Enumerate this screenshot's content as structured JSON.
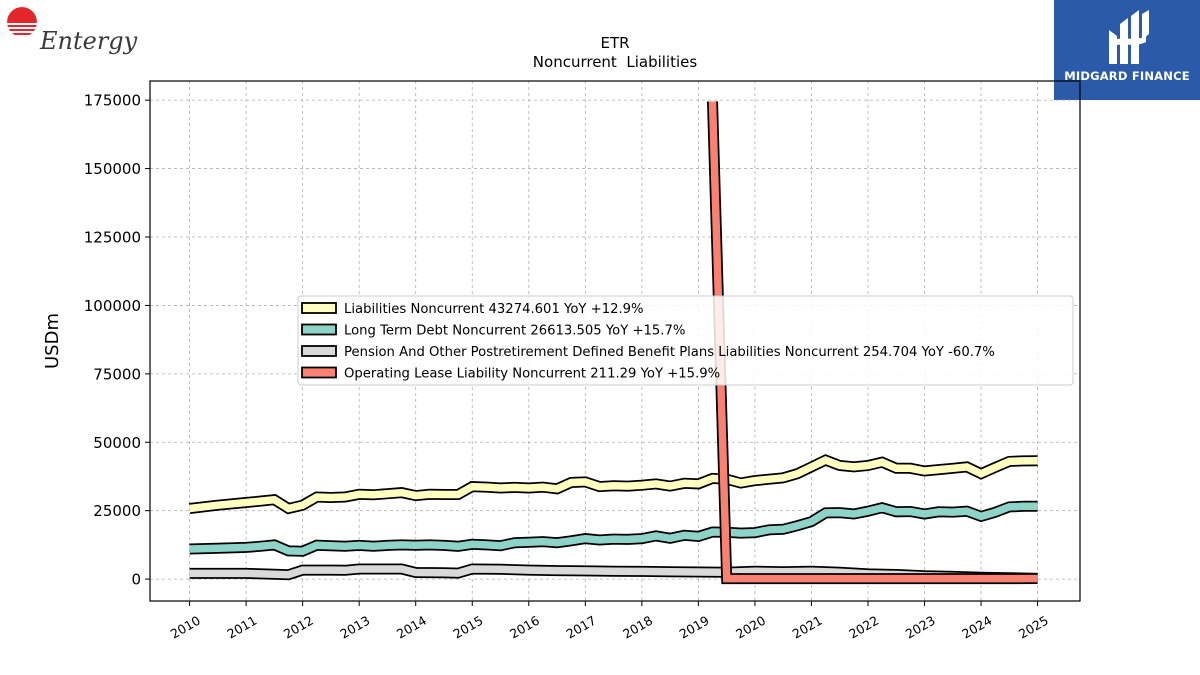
{
  "header": {
    "left_logo_text": "Entergy",
    "right_logo_text": "MIDGARD FINANCE"
  },
  "colors": {
    "liabilities_noncurrent": "#ffffc0",
    "long_term_debt": "#8dd3c7",
    "pension": "#d9d9d9",
    "operating_lease": "#fa8072",
    "entergy_red": "#e3262b",
    "midgard_blue": "#2b5aa8"
  },
  "chart_data": {
    "type": "line",
    "title": "ETR",
    "subtitle": "Noncurrent  Liabilities",
    "ylabel": "USDm",
    "xlabel": "",
    "ylim": [
      -8000,
      182000
    ],
    "xlim": [
      2009.3,
      2025.75
    ],
    "yticks": [
      0,
      25000,
      50000,
      75000,
      100000,
      125000,
      150000,
      175000
    ],
    "ytick_labels": [
      "0",
      "25000",
      "50000",
      "75000",
      "100000",
      "125000",
      "150000",
      "175000"
    ],
    "xticks": [
      2010,
      2011,
      2012,
      2013,
      2014,
      2015,
      2016,
      2017,
      2018,
      2019,
      2020,
      2021,
      2022,
      2023,
      2024,
      2025
    ],
    "xtick_labels": [
      "2010",
      "2011",
      "2012",
      "2013",
      "2014",
      "2015",
      "2016",
      "2017",
      "2018",
      "2019",
      "2020",
      "2021",
      "2022",
      "2023",
      "2024",
      "2025"
    ],
    "grid": true,
    "legend_position": "center-right",
    "series": [
      {
        "name": "Liabilities Noncurrent",
        "legend": "Liabilities Noncurrent  43274.601 YoY +12.9%",
        "color": "#ffffc0",
        "x": [
          2010.0,
          2010.5,
          2011.0,
          2011.25,
          2011.5,
          2011.75,
          2012.0,
          2012.25,
          2012.5,
          2012.75,
          2013.0,
          2013.25,
          2013.5,
          2013.75,
          2014.0,
          2014.25,
          2014.5,
          2014.75,
          2015.0,
          2015.25,
          2015.5,
          2015.75,
          2016.0,
          2016.25,
          2016.5,
          2016.75,
          2017.0,
          2017.25,
          2017.5,
          2017.75,
          2018.0,
          2018.25,
          2018.5,
          2018.75,
          2019.0,
          2019.25,
          2019.5,
          2019.75,
          2020.0,
          2020.25,
          2020.5,
          2020.75,
          2021.0,
          2021.25,
          2021.5,
          2021.75,
          2022.0,
          2022.25,
          2022.5,
          2022.75,
          2023.0,
          2023.25,
          2023.5,
          2023.75,
          2024.0,
          2024.25,
          2024.5,
          2024.75,
          2025.0
        ],
        "values": [
          25800,
          27000,
          28000,
          28500,
          29000,
          25800,
          27000,
          30000,
          29800,
          30000,
          31000,
          30800,
          31200,
          31600,
          30500,
          31000,
          30900,
          30900,
          33800,
          33600,
          33300,
          33500,
          33300,
          33600,
          33000,
          35300,
          35500,
          33800,
          34100,
          34000,
          34300,
          34800,
          34000,
          35000,
          34800,
          36800,
          36500,
          35100,
          36000,
          36500,
          37000,
          38500,
          41000,
          43500,
          41500,
          41000,
          41500,
          42700,
          40500,
          40500,
          39500,
          40000,
          40500,
          41000,
          38500,
          40800,
          43000,
          43200,
          43275
        ]
      },
      {
        "name": "Long Term Debt Noncurrent",
        "legend": "Long Term Debt Noncurrent  26613.505 YoY +15.7%",
        "color": "#8dd3c7",
        "x": [
          2010.0,
          2010.5,
          2011.0,
          2011.25,
          2011.5,
          2011.75,
          2012.0,
          2012.25,
          2012.5,
          2012.75,
          2013.0,
          2013.25,
          2013.5,
          2013.75,
          2014.0,
          2014.25,
          2014.5,
          2014.75,
          2015.0,
          2015.25,
          2015.5,
          2015.75,
          2016.0,
          2016.25,
          2016.5,
          2016.75,
          2017.0,
          2017.25,
          2017.5,
          2017.75,
          2018.0,
          2018.25,
          2018.5,
          2018.75,
          2019.0,
          2019.25,
          2019.5,
          2019.75,
          2020.0,
          2020.25,
          2020.5,
          2020.75,
          2021.0,
          2021.25,
          2021.5,
          2021.75,
          2022.0,
          2022.25,
          2022.5,
          2022.75,
          2023.0,
          2023.25,
          2023.5,
          2023.75,
          2024.0,
          2024.25,
          2024.5,
          2024.75,
          2025.0
        ],
        "values": [
          11000,
          11300,
          11600,
          12000,
          12500,
          10300,
          10200,
          12400,
          12200,
          12000,
          12300,
          12000,
          12300,
          12500,
          12400,
          12500,
          12300,
          12000,
          12700,
          12500,
          12200,
          13300,
          13500,
          13700,
          13300,
          14000,
          14800,
          14300,
          14600,
          14500,
          14800,
          15800,
          14900,
          16000,
          15600,
          17200,
          17100,
          16800,
          17000,
          18000,
          18200,
          19500,
          21000,
          24200,
          24300,
          23800,
          24800,
          26100,
          24600,
          24700,
          23800,
          24600,
          24500,
          24800,
          22900,
          24400,
          26400,
          26600,
          26614
        ]
      },
      {
        "name": "Pension And Other Postretirement Defined Benefit Plans Liabilities Noncurrent",
        "legend": "Pension And Other Postretirement Defined Benefit Plans Liabilities Noncurrent  254.704 YoY -60.7%",
        "color": "#d9d9d9",
        "x": [
          2010.0,
          2010.5,
          2011.0,
          2011.5,
          2011.75,
          2012.0,
          2012.25,
          2012.5,
          2012.75,
          2013.0,
          2013.5,
          2013.75,
          2014.0,
          2014.5,
          2014.75,
          2015.0,
          2015.5,
          2016.0,
          2016.5,
          2017.0,
          2017.5,
          2018.0,
          2018.5,
          2019.0,
          2019.5,
          2020.0,
          2020.5,
          2021.0,
          2021.5,
          2022.0,
          2022.5,
          2023.0,
          2023.5,
          2024.0,
          2024.5,
          2025.0
        ],
        "values": [
          2100,
          2100,
          2100,
          1800,
          1600,
          3300,
          3300,
          3300,
          3200,
          3700,
          3700,
          3700,
          2400,
          2300,
          2200,
          3700,
          3600,
          3300,
          3100,
          3000,
          2900,
          2800,
          2700,
          2600,
          2500,
          2900,
          2700,
          2900,
          2500,
          1900,
          1700,
          1200,
          1000,
          700,
          500,
          255
        ]
      },
      {
        "name": "Operating Lease Liability Noncurrent",
        "legend": "Operating Lease Liability Noncurrent  211.29 YoY +15.9%",
        "color": "#fa8072",
        "x": [
          2019.25,
          2019.5,
          2020.0,
          2020.5,
          2021.0,
          2021.5,
          2022.0,
          2022.5,
          2023.0,
          2023.5,
          2024.0,
          2024.5,
          2025.0
        ],
        "values": [
          174500,
          180,
          185,
          190,
          195,
          190,
          185,
          190,
          188,
          190,
          182,
          200,
          211
        ]
      }
    ]
  }
}
